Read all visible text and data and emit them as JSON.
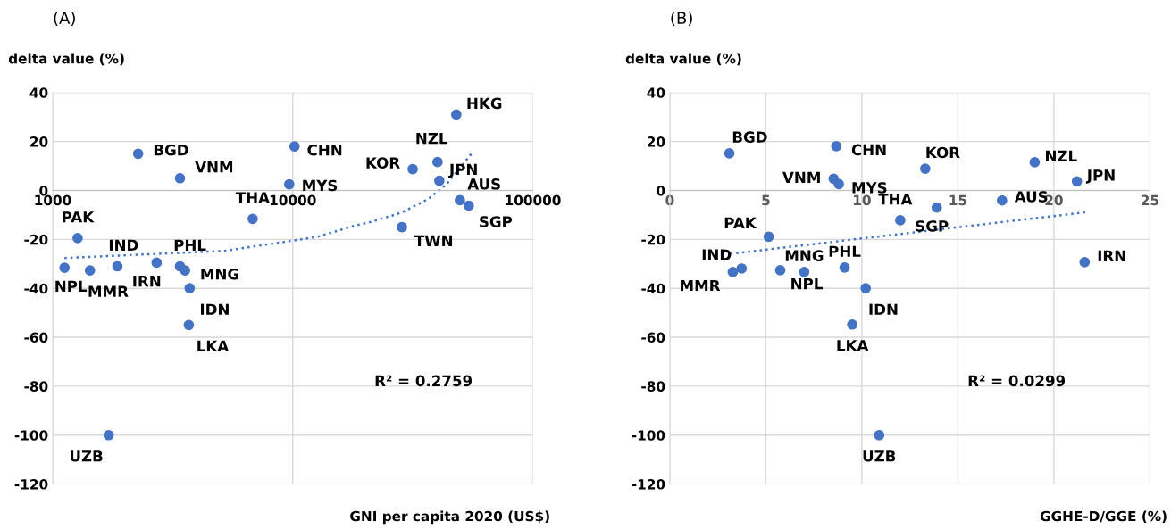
{
  "chart_data": [
    {
      "type": "scatter",
      "title": "(A)",
      "xlabel": "GNI per capita 2020 (US$)",
      "ylabel": "delta value (%)",
      "log": "x",
      "xlim": [
        1000,
        100000
      ],
      "xticks": [
        1000,
        10000,
        100000
      ],
      "ylim": [
        -120,
        40
      ],
      "yticks": [
        -120,
        -100,
        -80,
        -60,
        -40,
        -20,
        0,
        20,
        40
      ],
      "grid": true,
      "series": [
        {
          "marker": "circle",
          "color": "#4472c4",
          "x": [
            48000,
            2270,
            3390,
            10170,
            9670,
            31600,
            40100,
            40800,
            49700,
            54100,
            28500,
            6810,
            1270,
            1120,
            1430,
            1860,
            2710,
            3390,
            3560,
            3720,
            3690,
            1710
          ],
          "values": [
            31,
            15,
            5,
            18,
            2.5,
            8.7,
            11.6,
            4,
            -4,
            -6.2,
            -15,
            -11.6,
            -19.5,
            -31.6,
            -32.7,
            -31,
            -29.5,
            -31,
            -32.7,
            -40,
            -55,
            -100
          ]
        },
        {
          "type": "line",
          "line_style": "dotted",
          "color": "#4472c4",
          "x": [
            1120,
            5190,
            10000,
            12600,
            18000,
            21500,
            28500,
            36500,
            43700,
            55500
          ],
          "values": [
            -27.6,
            -24.7,
            -20.5,
            -19,
            -14.5,
            -12.7,
            -9,
            -3.6,
            2.5,
            15
          ]
        }
      ],
      "annotations": [
        {
          "text": "HKG",
          "x": 48000,
          "y": 31
        },
        {
          "text": "BGD",
          "x": 2270,
          "y": 15
        },
        {
          "text": "VNM",
          "x": 3390,
          "y": 5
        },
        {
          "text": "CHN",
          "x": 10170,
          "y": 18
        },
        {
          "text": "MYS",
          "x": 9670,
          "y": 2.5
        },
        {
          "text": "KOR",
          "x": 31600,
          "y": 8.7
        },
        {
          "text": "NZL",
          "x": 40100,
          "y": 11.6
        },
        {
          "text": "JPN",
          "x": 40800,
          "y": 4
        },
        {
          "text": "AUS",
          "x": 49700,
          "y": -4
        },
        {
          "text": "SGP",
          "x": 54100,
          "y": -6.2
        },
        {
          "text": "TWN",
          "x": 28500,
          "y": -15
        },
        {
          "text": "THA",
          "x": 6810,
          "y": -11.6
        },
        {
          "text": "PAK",
          "x": 1270,
          "y": -19.5
        },
        {
          "text": "NPL",
          "x": 1120,
          "y": -31.6
        },
        {
          "text": "MMR",
          "x": 1430,
          "y": -32.7
        },
        {
          "text": "IND",
          "x": 1860,
          "y": -31
        },
        {
          "text": "IRN",
          "x": 2710,
          "y": -29.5
        },
        {
          "text": "PHL",
          "x": 3390,
          "y": -31
        },
        {
          "text": "MNG",
          "x": 3560,
          "y": -32.7
        },
        {
          "text": "IDN",
          "x": 3720,
          "y": -40
        },
        {
          "text": "LKA",
          "x": 3690,
          "y": -55
        },
        {
          "text": "UZB",
          "x": 1710,
          "y": -100
        },
        "R² = 0.2759"
      ]
    },
    {
      "type": "scatter",
      "title": "(B)",
      "xlabel": "GGHE-D/GGE (%)",
      "ylabel": "delta value (%)",
      "xlim": [
        0,
        25
      ],
      "xticks": [
        0,
        5,
        10,
        15,
        20,
        25
      ],
      "ylim": [
        -120,
        40
      ],
      "yticks": [
        -120,
        -100,
        -80,
        -60,
        -40,
        -20,
        0,
        20,
        40
      ],
      "grid": true,
      "series": [
        {
          "marker": "circle",
          "color": "#4472c4",
          "x": [
            3.1,
            8.67,
            8.53,
            8.8,
            13.3,
            19.0,
            21.2,
            17.3,
            13.9,
            12.0,
            5.15,
            3.74,
            3.28,
            5.75,
            7.0,
            9.1,
            10.2,
            9.5,
            10.9,
            21.6
          ],
          "values": [
            15.2,
            18.1,
            4.8,
            2.6,
            8.9,
            11.5,
            3.7,
            -4.1,
            -7,
            -12.2,
            -18.9,
            -31.9,
            -33.3,
            -32.6,
            -33.3,
            -31.5,
            -40,
            -54.8,
            -100,
            -29.3
          ]
        },
        {
          "type": "line",
          "line_style": "dotted",
          "color": "#4472c4",
          "x": [
            3.15,
            21.7
          ],
          "values": [
            -25.9,
            -8.9
          ]
        }
      ],
      "annotations": [
        {
          "text": "BGD",
          "x": 3.1,
          "y": 15.2
        },
        {
          "text": "CHN",
          "x": 8.67,
          "y": 18.1
        },
        {
          "text": "VNM",
          "x": 8.53,
          "y": 4.8
        },
        {
          "text": "MYS",
          "x": 8.8,
          "y": 2.6
        },
        {
          "text": "KOR",
          "x": 13.3,
          "y": 8.9
        },
        {
          "text": "NZL",
          "x": 19.0,
          "y": 11.5
        },
        {
          "text": "JPN",
          "x": 21.2,
          "y": 3.7
        },
        {
          "text": "AUS",
          "x": 17.3,
          "y": -4.1
        },
        {
          "text": "SGP",
          "x": 13.9,
          "y": -7
        },
        {
          "text": "THA",
          "x": 12.0,
          "y": -12.2
        },
        {
          "text": "PAK",
          "x": 5.15,
          "y": -18.9
        },
        {
          "text": "IND",
          "x": 3.74,
          "y": -31.9
        },
        {
          "text": "MMR",
          "x": 3.28,
          "y": -33.3
        },
        {
          "text": "NPL",
          "x": 5.75,
          "y": -32.6
        },
        {
          "text": "MNG",
          "x": 7.0,
          "y": -33.3
        },
        {
          "text": "PHL",
          "x": 9.1,
          "y": -31.5
        },
        {
          "text": "IDN",
          "x": 10.2,
          "y": -40
        },
        {
          "text": "LKA",
          "x": 9.5,
          "y": -54.8
        },
        {
          "text": "UZB",
          "x": 10.9,
          "y": -100
        },
        {
          "text": "IRN",
          "x": 21.6,
          "y": -29.3
        },
        "R² = 0.0299"
      ]
    }
  ]
}
